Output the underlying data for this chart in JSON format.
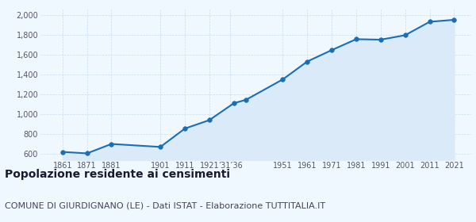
{
  "years": [
    1861,
    1871,
    1881,
    1901,
    1911,
    1921,
    1931,
    1936,
    1951,
    1961,
    1971,
    1981,
    1991,
    2001,
    2011,
    2021
  ],
  "population": [
    620,
    605,
    700,
    670,
    855,
    940,
    1110,
    1145,
    1350,
    1530,
    1645,
    1755,
    1750,
    1795,
    1930,
    1950
  ],
  "xlim": [
    1852,
    2028
  ],
  "ylim": [
    540,
    2060
  ],
  "yticks": [
    600,
    800,
    1000,
    1200,
    1400,
    1600,
    1800,
    2000
  ],
  "ytick_labels": [
    "600",
    "800",
    "1,000",
    "1,200",
    "1,400",
    "1,600",
    "1,800",
    "2,000"
  ],
  "xtick_positions": [
    1861,
    1871,
    1881,
    1901,
    1911,
    1921,
    1929.5,
    1951,
    1961,
    1971,
    1981,
    1991,
    2001,
    2011,
    2021
  ],
  "xtick_labels": [
    "1861",
    "1871",
    "1881",
    "1901",
    "1911",
    "1921",
    "’31’36",
    "1951",
    "1961",
    "1971",
    "1981",
    "1991",
    "2001",
    "2011",
    "2021"
  ],
  "line_color": "#1a6eb5",
  "fill_color": "#daeaf8",
  "marker_color": "#1a6eb5",
  "background_color": "#f0f8ff",
  "grid_color": "#c8dced",
  "title": "Popolazione residente ai censimenti",
  "subtitle": "COMUNE DI GIURDIGNANO (LE) - Dati ISTAT - Elaborazione TUTTITALIA.IT",
  "title_fontsize": 10,
  "subtitle_fontsize": 8,
  "tick_fontsize": 7,
  "tick_color": "#555566"
}
